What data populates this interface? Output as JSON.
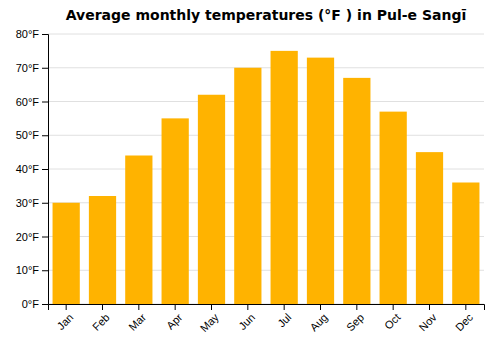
{
  "chart_data": {
    "type": "bar",
    "title": "Average monthly temperatures (°F ) in Pul-e Sangī",
    "categories": [
      "Jan",
      "Feb",
      "Mar",
      "Apr",
      "May",
      "Jun",
      "Jul",
      "Aug",
      "Sep",
      "Oct",
      "Nov",
      "Dec"
    ],
    "values": [
      30,
      32,
      44,
      55,
      62,
      70,
      75,
      73,
      67,
      57,
      45,
      36
    ],
    "color": "#FFB300",
    "ylim": [
      0,
      80
    ],
    "yticks": [
      {
        "value": 0,
        "label": "0°F"
      },
      {
        "value": 10,
        "label": "10°F"
      },
      {
        "value": 20,
        "label": "20°F"
      },
      {
        "value": 30,
        "label": "30°F"
      },
      {
        "value": 40,
        "label": "40°F"
      },
      {
        "value": 50,
        "label": "50°F"
      },
      {
        "value": 60,
        "label": "60°F"
      },
      {
        "value": 70,
        "label": "70°F"
      },
      {
        "value": 80,
        "label": "80°F"
      }
    ],
    "grid": true
  }
}
